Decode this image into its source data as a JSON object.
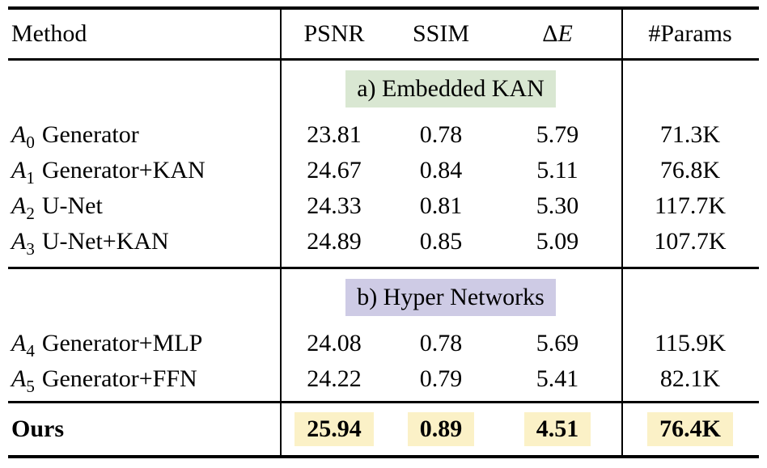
{
  "colors": {
    "section_a_bg": "#d9e7d2",
    "section_b_bg": "#cecbe5",
    "highlight_bg": "#fbf1c7"
  },
  "header": {
    "method": "Method",
    "psnr": "PSNR",
    "ssim": "SSIM",
    "delta_sym": "Δ",
    "delta_var": "E",
    "params": "#Params"
  },
  "sections": [
    {
      "label": "a) Embedded KAN",
      "rows": [
        {
          "var": "A",
          "sub": "0",
          "name": "Generator",
          "psnr": "23.81",
          "ssim": "0.78",
          "delta_e": "5.79",
          "params": "71.3K"
        },
        {
          "var": "A",
          "sub": "1",
          "name": "Generator+KAN",
          "psnr": "24.67",
          "ssim": "0.84",
          "delta_e": "5.11",
          "params": "76.8K"
        },
        {
          "var": "A",
          "sub": "2",
          "name": "U-Net",
          "psnr": "24.33",
          "ssim": "0.81",
          "delta_e": "5.30",
          "params": "117.7K"
        },
        {
          "var": "A",
          "sub": "3",
          "name": "U-Net+KAN",
          "psnr": "24.89",
          "ssim": "0.85",
          "delta_e": "5.09",
          "params": "107.7K"
        }
      ]
    },
    {
      "label": "b) Hyper Networks",
      "rows": [
        {
          "var": "A",
          "sub": "4",
          "name": "Generator+MLP",
          "psnr": "24.08",
          "ssim": "0.78",
          "delta_e": "5.69",
          "params": "115.9K"
        },
        {
          "var": "A",
          "sub": "5",
          "name": "Generator+FFN",
          "psnr": "24.22",
          "ssim": "0.79",
          "delta_e": "5.41",
          "params": "82.1K"
        }
      ]
    }
  ],
  "ours": {
    "label": "Ours",
    "psnr": "25.94",
    "ssim": "0.89",
    "delta_e": "4.51",
    "params": "76.4K"
  }
}
